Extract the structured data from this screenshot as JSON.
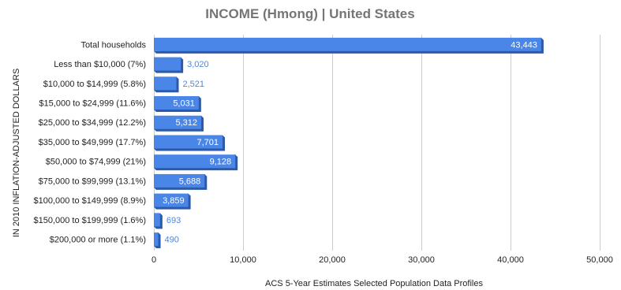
{
  "chart_data": {
    "type": "bar",
    "orientation": "horizontal",
    "title": "INCOME (Hmong) | United States",
    "xlabel": "ACS 5-Year Estimates Selected Population Data Profiles",
    "ylabel": "IN 2010 INFLATION-ADJUSTED DOLLARS",
    "categories": [
      "Total households",
      "Less than $10,000 (7%)",
      "$10,000 to $14,999 (5.8%)",
      "$15,000 to $24,999 (11.6%)",
      "$25,000 to $34,999 (12.2%)",
      "$35,000 to $49,999 (17.7%)",
      "$50,000 to $74,999 (21%)",
      "$75,000 to $99,999 (13.1%)",
      "$100,000 to $149,999 (8.9%)",
      "$150,000 to $199,999 (1.6%)",
      "$200,000 or more (1.1%)"
    ],
    "values": [
      43443,
      3020,
      2521,
      5031,
      5312,
      7701,
      9128,
      5688,
      3859,
      693,
      490
    ],
    "value_labels": [
      "43,443",
      "3,020",
      "2,521",
      "5,031",
      "5,312",
      "7,701",
      "9,128",
      "5,688",
      "3,859",
      "693",
      "490"
    ],
    "xlim": [
      0,
      50000
    ],
    "ticks": [
      0,
      10000,
      20000,
      30000,
      40000,
      50000
    ],
    "tick_labels": [
      "0",
      "10,000",
      "20,000",
      "30,000",
      "40,000",
      "50,000"
    ],
    "grid": "vertical",
    "bar_color": "#4a86e8",
    "bar_shadow_color": "#2c5aa8",
    "label_inside_color": "#ffffff",
    "label_outside_color": "#4a86e8"
  }
}
